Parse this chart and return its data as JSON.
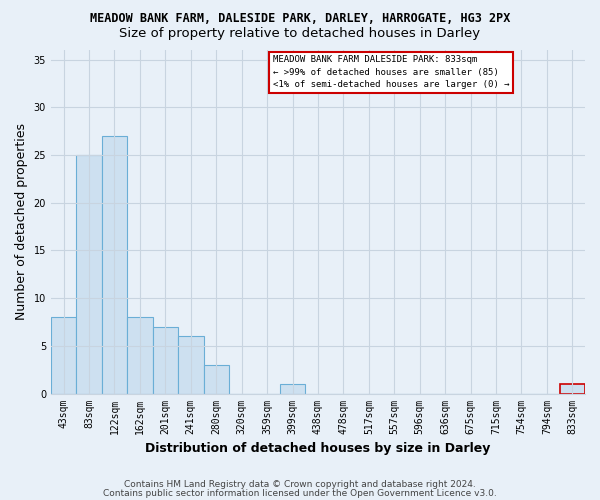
{
  "title1": "MEADOW BANK FARM, DALESIDE PARK, DARLEY, HARROGATE, HG3 2PX",
  "title2": "Size of property relative to detached houses in Darley",
  "xlabel": "Distribution of detached houses by size in Darley",
  "ylabel": "Number of detached properties",
  "categories": [
    "43sqm",
    "83sqm",
    "122sqm",
    "162sqm",
    "201sqm",
    "241sqm",
    "280sqm",
    "320sqm",
    "359sqm",
    "399sqm",
    "438sqm",
    "478sqm",
    "517sqm",
    "557sqm",
    "596sqm",
    "636sqm",
    "675sqm",
    "715sqm",
    "754sqm",
    "794sqm",
    "833sqm"
  ],
  "values": [
    8,
    25,
    27,
    8,
    7,
    6,
    3,
    0,
    0,
    1,
    0,
    0,
    0,
    0,
    0,
    0,
    0,
    0,
    0,
    0,
    1
  ],
  "bar_color": "#cde0f0",
  "bar_edge_color": "#6aaed6",
  "highlight_index": 20,
  "highlight_edge_color": "#cc0000",
  "ylim": [
    0,
    36
  ],
  "yticks": [
    0,
    5,
    10,
    15,
    20,
    25,
    30,
    35
  ],
  "legend_title": "MEADOW BANK FARM DALESIDE PARK: 833sqm",
  "legend_line1": "← >99% of detached houses are smaller (85)",
  "legend_line2": "<1% of semi-detached houses are larger (0) →",
  "footnote1": "Contains HM Land Registry data © Crown copyright and database right 2024.",
  "footnote2": "Contains public sector information licensed under the Open Government Licence v3.0.",
  "bg_color": "#e8f0f8",
  "grid_color": "#c8d4e0",
  "title1_fontsize": 8.5,
  "title2_fontsize": 9.5,
  "axis_label_fontsize": 9,
  "tick_fontsize": 7,
  "footnote_fontsize": 6.5
}
